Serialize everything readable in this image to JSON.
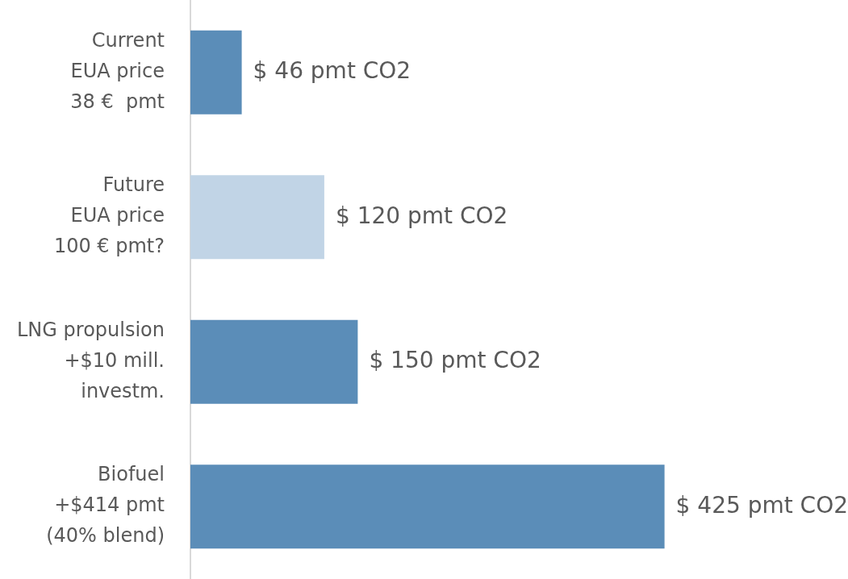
{
  "chart_data": {
    "type": "bar",
    "orientation": "horizontal",
    "categories": [
      "Current\nEUA price\n38 €  pmt",
      "Future\nEUA price\n100 € pmt?",
      "LNG propulsion\n+$10 mill.\ninvestm.",
      "Biofuel\n+$414 pmt\n(40% blend)"
    ],
    "values": [
      46,
      120,
      150,
      425
    ],
    "colors": [
      "#5b8db8",
      "#c1d4e6",
      "#5b8db8",
      "#5b8db8"
    ],
    "value_labels": [
      "$ 46 pmt CO2",
      "$ 120 pmt CO2",
      "$ 150 pmt CO2",
      "$ 425 pmt CO2"
    ]
  }
}
